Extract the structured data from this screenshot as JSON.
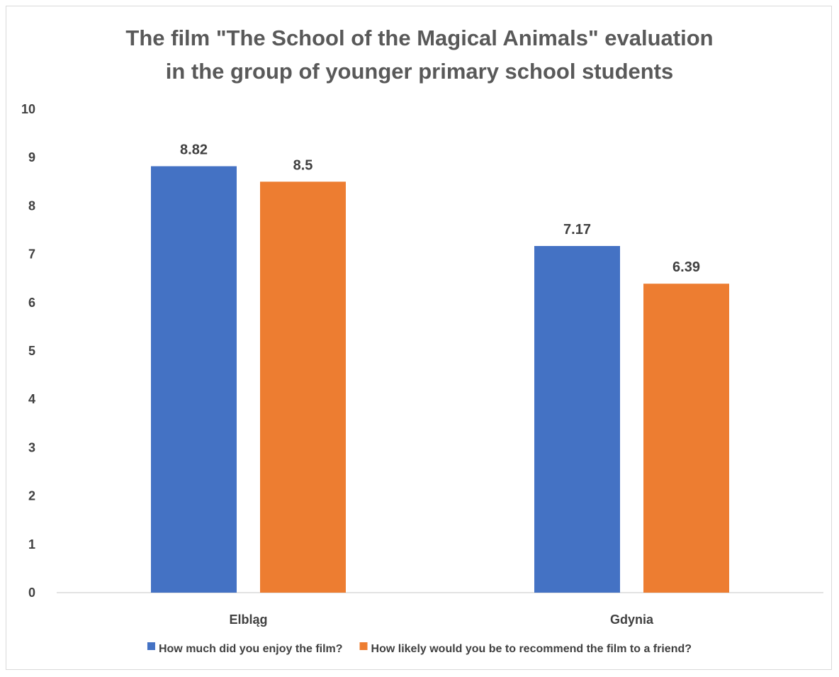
{
  "chart_data": {
    "type": "bar",
    "title_lines": [
      "The film \"The School of the Magical Animals\" evaluation",
      "in the group of younger primary school students"
    ],
    "categories": [
      "Elbląg",
      "Gdynia"
    ],
    "series": [
      {
        "name": "How much did you enjoy the film?",
        "values": [
          8.82,
          7.17
        ],
        "color": "#4472C4"
      },
      {
        "name": "How likely would you be to recommend the film to a friend?",
        "values": [
          8.5,
          6.39
        ],
        "color": "#ED7D31"
      }
    ],
    "data_labels": [
      [
        "8.82",
        "7.17"
      ],
      [
        "8.5",
        "6.39"
      ]
    ],
    "ylim": [
      0,
      10
    ],
    "yticks": [
      "0",
      "1",
      "2",
      "3",
      "4",
      "5",
      "6",
      "7",
      "8",
      "9",
      "10"
    ],
    "grid": false,
    "legend_position": "bottom"
  }
}
